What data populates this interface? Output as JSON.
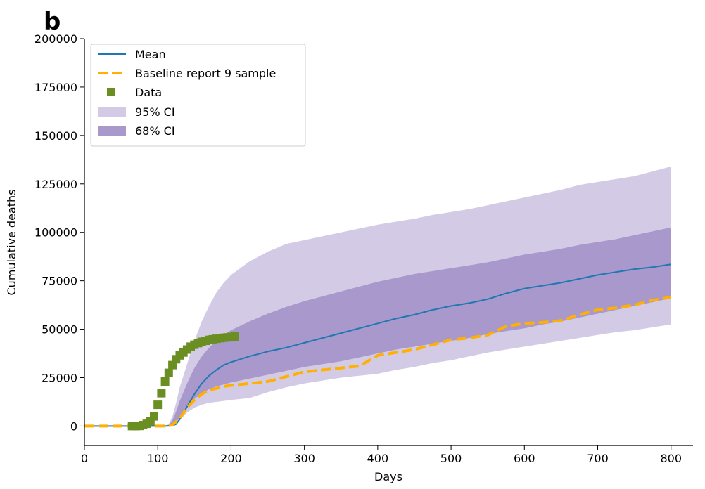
{
  "panel_label": "b",
  "colors": {
    "mean": "#1f77b4",
    "baseline": "#ffb000",
    "data": "#6b8e23",
    "ci95": "#d3cbe5",
    "ci68": "#a898cc",
    "axis": "#000000"
  },
  "chart_data": {
    "type": "line",
    "title": "",
    "xlabel": "Days",
    "ylabel": "Cumulative deaths",
    "xlim": [
      0,
      830
    ],
    "ylim": [
      -10000,
      200000
    ],
    "x_ticks": [
      0,
      100,
      200,
      300,
      400,
      500,
      600,
      700,
      800
    ],
    "y_ticks": [
      0,
      25000,
      50000,
      75000,
      100000,
      125000,
      150000,
      175000,
      200000
    ],
    "grid": false,
    "legend_placement": "top-left",
    "legend": [
      "Mean",
      "Baseline report 9 sample",
      "Data",
      "95% CI",
      "68% CI"
    ],
    "series": [
      {
        "name": "Mean",
        "style": "line",
        "x": [
          0,
          110,
          120,
          125,
          130,
          140,
          150,
          160,
          170,
          180,
          190,
          200,
          225,
          250,
          275,
          300,
          325,
          350,
          375,
          400,
          425,
          450,
          475,
          500,
          525,
          550,
          575,
          600,
          625,
          650,
          675,
          700,
          725,
          750,
          775,
          800
        ],
        "y": [
          0,
          0,
          200,
          1000,
          3500,
          10000,
          16500,
          22000,
          26000,
          29000,
          31500,
          33000,
          36000,
          38500,
          40500,
          43000,
          45500,
          48000,
          50500,
          53000,
          55500,
          57500,
          60000,
          62000,
          63500,
          65500,
          68500,
          71000,
          72500,
          74000,
          76000,
          78000,
          79500,
          81000,
          82000,
          83500
        ]
      },
      {
        "name": "Baseline report 9 sample",
        "style": "dashed",
        "x": [
          0,
          110,
          120,
          130,
          140,
          150,
          160,
          170,
          180,
          190,
          200,
          225,
          250,
          275,
          300,
          325,
          350,
          375,
          400,
          425,
          450,
          475,
          500,
          525,
          550,
          575,
          600,
          625,
          650,
          675,
          700,
          725,
          750,
          775,
          800
        ],
        "y": [
          0,
          0,
          500,
          4000,
          9500,
          13500,
          16500,
          18500,
          19500,
          20500,
          21000,
          22000,
          23000,
          25500,
          28000,
          29000,
          30000,
          31000,
          36500,
          38000,
          39500,
          42000,
          44500,
          45500,
          47000,
          51500,
          53000,
          53500,
          54500,
          57500,
          60000,
          61000,
          62500,
          65000,
          66500
        ]
      },
      {
        "name": "Data",
        "style": "markers",
        "x": [
          65,
          70,
          75,
          80,
          85,
          90,
          95,
          100,
          105,
          110,
          115,
          120,
          125,
          130,
          135,
          140,
          145,
          150,
          155,
          160,
          165,
          170,
          175,
          180,
          185,
          190,
          195,
          200,
          205
        ],
        "y": [
          0,
          0,
          100,
          500,
          1200,
          2500,
          5000,
          11000,
          17000,
          23000,
          27500,
          31500,
          34500,
          36500,
          38000,
          39500,
          41000,
          42000,
          42800,
          43500,
          44000,
          44500,
          44800,
          45100,
          45400,
          45600,
          45800,
          46000,
          46200
        ]
      }
    ],
    "bands": [
      {
        "name": "95% CI",
        "x": [
          0,
          110,
          115,
          120,
          125,
          130,
          140,
          150,
          160,
          170,
          180,
          190,
          200,
          225,
          250,
          275,
          300,
          325,
          350,
          375,
          400,
          425,
          450,
          475,
          500,
          525,
          550,
          575,
          600,
          625,
          650,
          675,
          700,
          725,
          750,
          775,
          800
        ],
        "lower": [
          0,
          0,
          0,
          200,
          1000,
          3000,
          7000,
          9500,
          11000,
          12000,
          12500,
          13000,
          13500,
          14500,
          17500,
          20000,
          22000,
          23500,
          25000,
          26000,
          27000,
          29000,
          30500,
          32500,
          34000,
          36000,
          38000,
          39500,
          41000,
          42500,
          44000,
          45500,
          47000,
          48500,
          49500,
          51000,
          52500
        ],
        "upper": [
          0,
          0,
          1000,
          5000,
          12000,
          20000,
          32000,
          44000,
          54000,
          62000,
          69000,
          74000,
          78000,
          85000,
          90000,
          94000,
          96000,
          98000,
          100000,
          102000,
          104000,
          105500,
          107000,
          109000,
          110500,
          112000,
          114000,
          116000,
          118000,
          120000,
          122000,
          124500,
          126000,
          127500,
          129000,
          131500,
          134000
        ]
      },
      {
        "name": "68% CI",
        "x": [
          0,
          110,
          115,
          120,
          125,
          130,
          140,
          150,
          160,
          170,
          180,
          190,
          200,
          225,
          250,
          275,
          300,
          325,
          350,
          375,
          400,
          425,
          450,
          475,
          500,
          525,
          550,
          575,
          600,
          625,
          650,
          675,
          700,
          725,
          750,
          775,
          800
        ],
        "lower": [
          0,
          0,
          0,
          500,
          2000,
          4500,
          9500,
          14000,
          17000,
          19000,
          20500,
          21500,
          22500,
          24500,
          26500,
          28500,
          30500,
          32000,
          33500,
          35500,
          37500,
          39500,
          41000,
          42500,
          44000,
          45500,
          47500,
          49000,
          50500,
          52500,
          54000,
          56000,
          58000,
          60000,
          62000,
          64000,
          66000
        ],
        "upper": [
          0,
          0,
          500,
          3000,
          7500,
          13000,
          22000,
          30000,
          36000,
          40500,
          44000,
          47000,
          49500,
          54000,
          58000,
          61500,
          64500,
          67000,
          69500,
          72000,
          74500,
          76500,
          78500,
          80000,
          81500,
          83000,
          84500,
          86500,
          88500,
          90000,
          91500,
          93500,
          95000,
          96500,
          98500,
          100500,
          102500
        ]
      }
    ]
  }
}
